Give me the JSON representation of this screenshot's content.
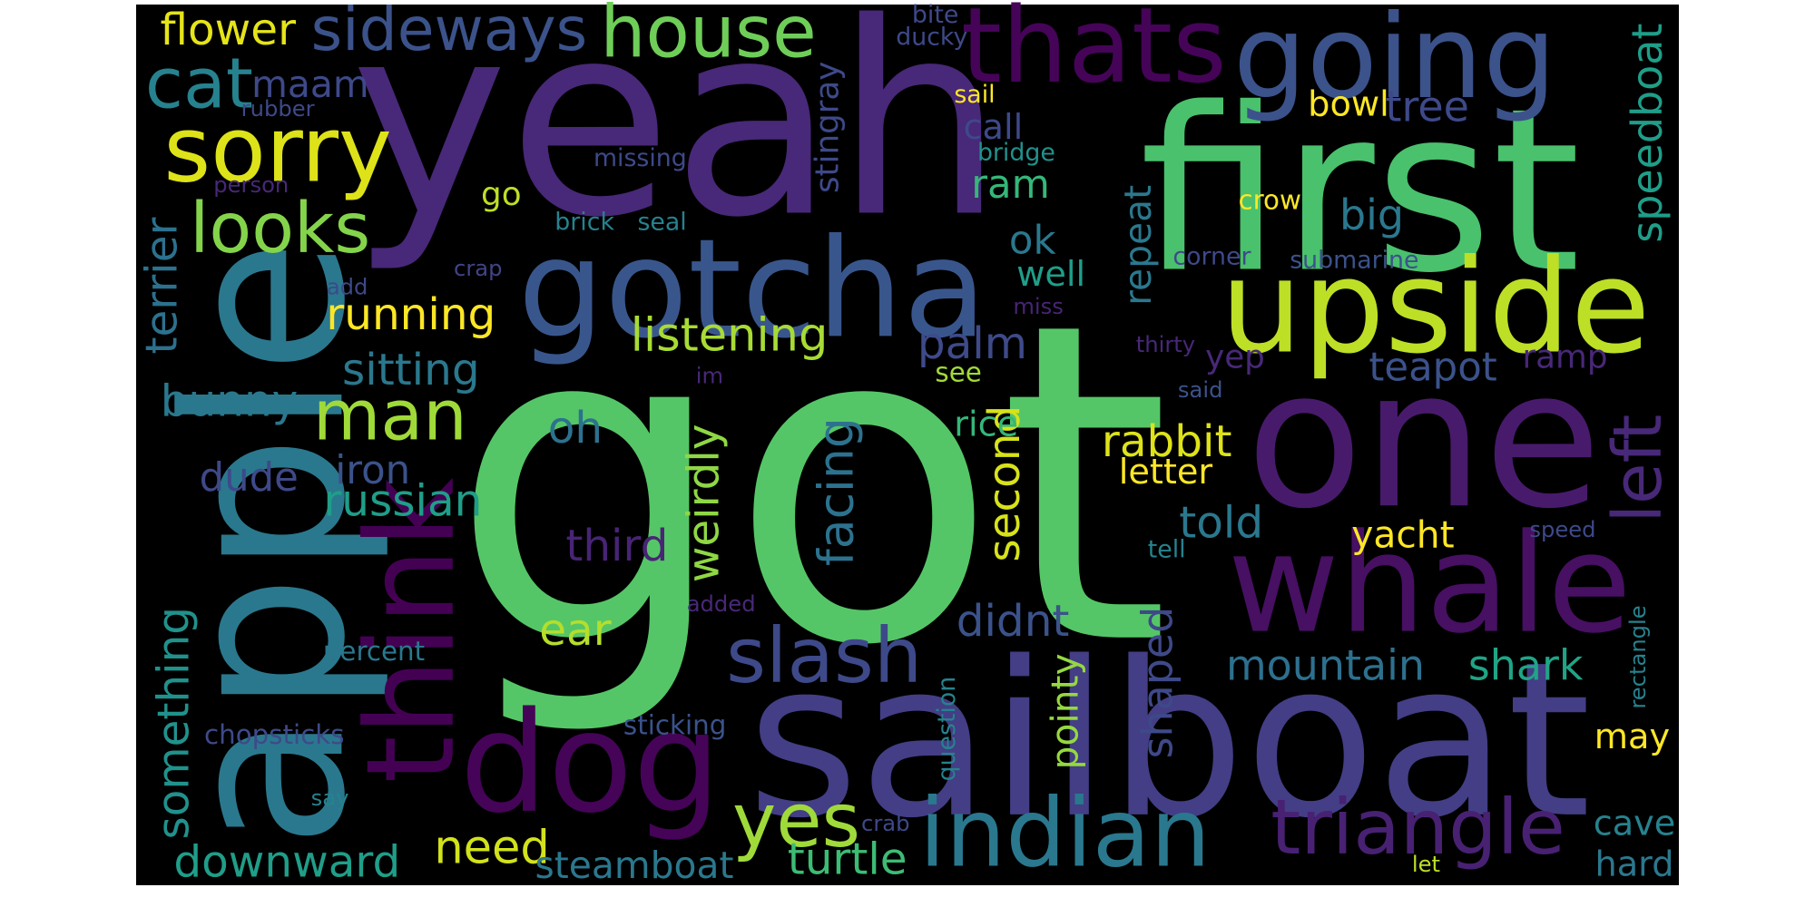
{
  "chart_data": {
    "type": "wordcloud",
    "words": [
      "got",
      "yeah",
      "first",
      "sailboat",
      "apple",
      "one",
      "gotcha",
      "upside",
      "whale",
      "going",
      "thats",
      "think",
      "dog",
      "indian",
      "triangle",
      "slash",
      "sorry",
      "house",
      "sideways",
      "cat",
      "flower",
      "maam",
      "looks",
      "man",
      "running",
      "listening",
      "sitting",
      "bunny",
      "dude",
      "iron",
      "russian",
      "terrier",
      "something",
      "downward",
      "chopsticks",
      "percent",
      "say",
      "add",
      "crap",
      "person",
      "rubber",
      "missing",
      "brick",
      "seal",
      "go",
      "oh",
      "im",
      "ear",
      "need",
      "yes",
      "steamboat",
      "sticking",
      "added",
      "weirdly",
      "third",
      "turtle",
      "crab",
      "facing",
      "pointy",
      "didnt",
      "question",
      "mountain",
      "shark",
      "shaped",
      "second",
      "rice",
      "see",
      "palm",
      "ok",
      "well",
      "ram",
      "call",
      "sail",
      "bridge",
      "stingray",
      "ducky",
      "bite",
      "miss",
      "repeat",
      "rabbit",
      "letter",
      "told",
      "tell",
      "yacht",
      "speed",
      "left",
      "may",
      "cave",
      "hard",
      "let",
      "rectangle",
      "speedboat",
      "tree",
      "bowl",
      "big",
      "crow",
      "corner",
      "submarine",
      "thirty",
      "said",
      "yep",
      "teapot",
      "ramp"
    ],
    "colors": [
      "#55c667",
      "#482878",
      "#4ac16d",
      "#433e85",
      "#2a788e",
      "#481a6c",
      "#39568c",
      "#bddf26",
      "#471063",
      "#3b528b",
      "#450457",
      "#440154",
      "#450457",
      "#2a788e",
      "#482173",
      "#3e4989",
      "#dde318",
      "#6ece58",
      "#3b528b",
      "#26828e",
      "#e5e419",
      "#3e4989",
      "#84d44b",
      "#a0da39",
      "#fde725",
      "#a8db34",
      "#2a788e",
      "#2a788e",
      "#3e4989",
      "#3b528b",
      "#1f9e89",
      "#2c718e",
      "#21918c",
      "#1f9e89",
      "#3e4a89",
      "#2a788e",
      "#26828e",
      "#3e4989",
      "#414487",
      "#482878",
      "#3e4989",
      "#3e4989",
      "#26828e",
      "#26828e",
      "#bddf26",
      "#2c728e",
      "#482878",
      "#b5de2b",
      "#d2e21b",
      "#9fda3a",
      "#2a788e",
      "#3b528b",
      "#482878",
      "#8fd744",
      "#482475",
      "#3dbc74",
      "#3e4989",
      "#2c728e",
      "#95d840",
      "#3b528b",
      "#26828e",
      "#2d708e",
      "#20a486",
      "#3e4989",
      "#d8e219",
      "#35b779",
      "#a2da37",
      "#3e4a89",
      "#2a788e",
      "#1f9e89",
      "#35b779",
      "#3e4989",
      "#fde725",
      "#21918c",
      "#3e4989",
      "#3e4989",
      "#3e4989",
      "#482475",
      "#2a788e",
      "#dde318",
      "#fde725",
      "#2a788e",
      "#26828e",
      "#fde725",
      "#3e4989",
      "#482878",
      "#fde725",
      "#26828e",
      "#2a788e",
      "#bddf26",
      "#26828e",
      "#1f9e89",
      "#3e4989",
      "#fde725",
      "#2a788e",
      "#fde725",
      "#3e4989",
      "#3b528b",
      "#482878",
      "#3b528b",
      "#482878",
      "#3b528b",
      "#482878"
    ]
  }
}
